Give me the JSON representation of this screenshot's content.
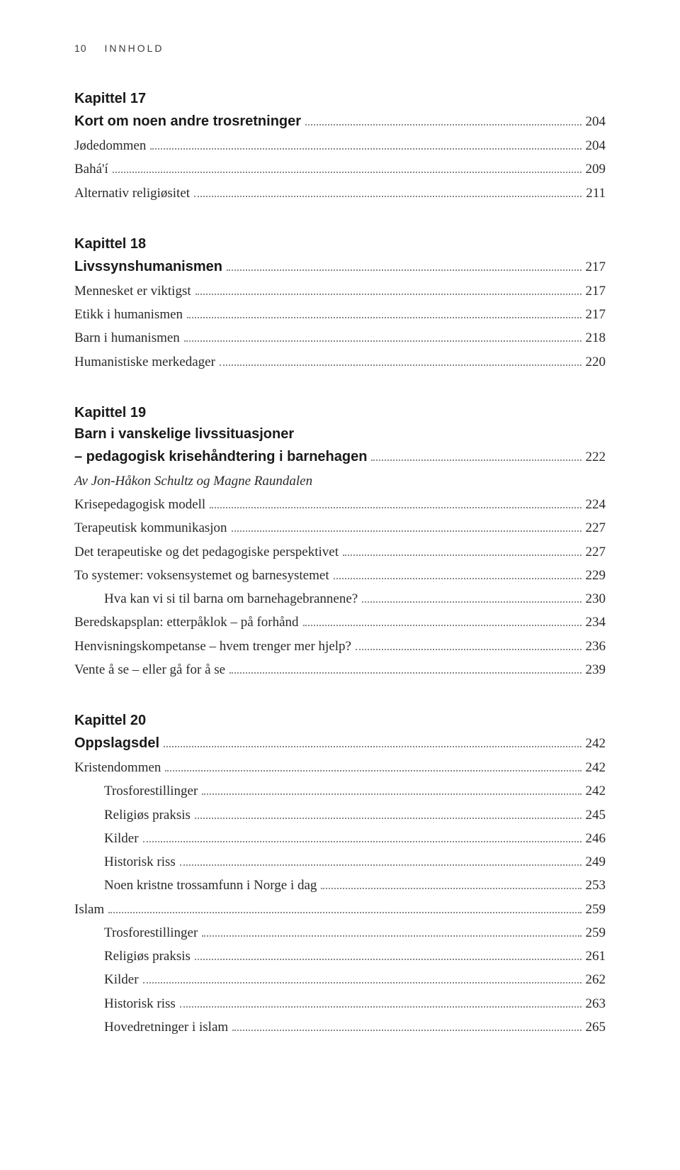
{
  "header": {
    "page_number": "10",
    "running_head": "INNHOLD"
  },
  "sections": [
    {
      "kapittel": "Kapittel 17",
      "heading": {
        "label": "Kort om noen andre trosretninger",
        "page": "204"
      },
      "rows": [
        {
          "label": "Jødedommen",
          "page": "204",
          "indent": 0
        },
        {
          "label": "Bahá'í",
          "page": "209",
          "indent": 0
        },
        {
          "label": "Alternativ religiøsitet",
          "page": "211",
          "indent": 0
        }
      ]
    },
    {
      "kapittel": "Kapittel 18",
      "heading": {
        "label": "Livssynshumanismen",
        "page": "217"
      },
      "rows": [
        {
          "label": "Mennesket er viktigst",
          "page": "217",
          "indent": 0
        },
        {
          "label": "Etikk i humanismen",
          "page": "217",
          "indent": 0
        },
        {
          "label": "Barn i humanismen",
          "page": "218",
          "indent": 0
        },
        {
          "label": "Humanistiske merkedager",
          "page": "220",
          "indent": 0
        }
      ]
    },
    {
      "kapittel": "Kapittel 19",
      "heading_lines": [
        "Barn i vanskelige livssituasjoner"
      ],
      "heading_last": {
        "label": "– pedagogisk krisehåndtering i barnehagen",
        "page": "222"
      },
      "rows": [
        {
          "label": "Av Jon-Håkon Schultz og Magne Raundalen",
          "page": "",
          "indent": 0,
          "italic": true,
          "noleader": true
        },
        {
          "label": "Krisepedagogisk modell",
          "page": "224",
          "indent": 0
        },
        {
          "label": "Terapeutisk kommunikasjon",
          "page": "227",
          "indent": 0
        },
        {
          "label": "Det terapeutiske og det pedagogiske perspektivet",
          "page": "227",
          "indent": 0
        },
        {
          "label": "To systemer: voksensystemet og barnesystemet",
          "page": "229",
          "indent": 0
        },
        {
          "label": "Hva kan vi si til barna om barnehagebrannene?",
          "page": "230",
          "indent": 1
        },
        {
          "label": "Beredskapsplan: etterpåklok – på forhånd",
          "page": "234",
          "indent": 0
        },
        {
          "label": "Henvisningskompetanse – hvem trenger mer hjelp?",
          "page": "236",
          "indent": 0
        },
        {
          "label": "Vente å se – eller gå for å se",
          "page": "239",
          "indent": 0
        }
      ]
    },
    {
      "kapittel": "Kapittel 20",
      "heading": {
        "label": "Oppslagsdel",
        "page": "242"
      },
      "rows": [
        {
          "label": "Kristendommen",
          "page": "242",
          "indent": 0
        },
        {
          "label": "Trosforestillinger",
          "page": "242",
          "indent": 1
        },
        {
          "label": "Religiøs praksis",
          "page": "245",
          "indent": 1
        },
        {
          "label": "Kilder",
          "page": "246",
          "indent": 1
        },
        {
          "label": "Historisk riss",
          "page": "249",
          "indent": 1
        },
        {
          "label": "Noen kristne trossamfunn i Norge i dag",
          "page": "253",
          "indent": 1
        },
        {
          "label": "Islam",
          "page": "259",
          "indent": 0
        },
        {
          "label": "Trosforestillinger",
          "page": "259",
          "indent": 1
        },
        {
          "label": "Religiøs praksis",
          "page": "261",
          "indent": 1
        },
        {
          "label": "Kilder",
          "page": "262",
          "indent": 1
        },
        {
          "label": "Historisk riss",
          "page": "263",
          "indent": 1
        },
        {
          "label": "Hovedretninger i islam",
          "page": "265",
          "indent": 1
        }
      ]
    }
  ]
}
